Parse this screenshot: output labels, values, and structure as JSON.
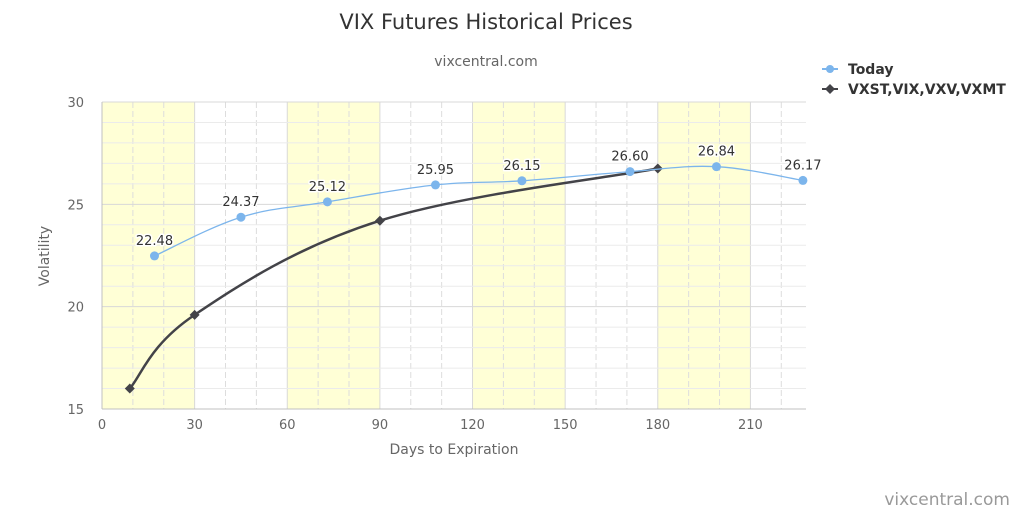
{
  "chart_data": {
    "type": "line",
    "title": "VIX Futures Historical Prices",
    "subtitle": "vixcentral.com",
    "xlabel": "Days to Expiration",
    "ylabel": "Volatility",
    "xlim": [
      0,
      228
    ],
    "ylim": [
      15,
      30
    ],
    "xticks": [
      "0",
      "30",
      "60",
      "90",
      "120",
      "150",
      "180",
      "210"
    ],
    "yticks": [
      "15",
      "20",
      "25",
      "30"
    ],
    "shaded_x_bands": [
      [
        0,
        30
      ],
      [
        60,
        90
      ],
      [
        120,
        150
      ],
      [
        180,
        210
      ]
    ],
    "grid": true,
    "legend_position": "top-right",
    "series": [
      {
        "name": "Today",
        "color": "#7cb5ec",
        "marker": "circle",
        "x": [
          17,
          45,
          73,
          108,
          136,
          171,
          199,
          227
        ],
        "y": [
          22.48,
          24.37,
          25.12,
          25.95,
          26.15,
          26.6,
          26.84,
          26.17
        ],
        "labels": [
          "22.48",
          "24.37",
          "25.12",
          "25.95",
          "26.15",
          "26.60",
          "26.84",
          "26.17"
        ]
      },
      {
        "name": "VXST,VIX,VXV,VXMT",
        "color": "#434348",
        "marker": "diamond",
        "x": [
          9,
          30,
          90,
          180
        ],
        "y": [
          16.0,
          19.6,
          24.2,
          26.75
        ]
      }
    ]
  },
  "credit": "vixcentral.com"
}
